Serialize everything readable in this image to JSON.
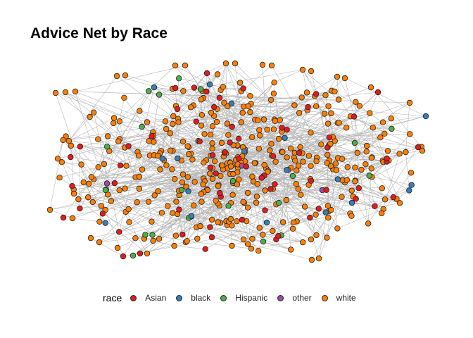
{
  "title": "Advice Net by Race",
  "legend": {
    "title": "race",
    "items": [
      {
        "label": "Asian",
        "color": "#E41A1C"
      },
      {
        "label": "black",
        "color": "#377EB8"
      },
      {
        "label": "Hispanic",
        "color": "#4DAF4A"
      },
      {
        "label": "other",
        "color": "#984EA3"
      },
      {
        "label": "white",
        "color": "#FF7F00"
      }
    ]
  },
  "graph": {
    "node_outline": "#222222",
    "edge_color": "#999999"
  }
}
